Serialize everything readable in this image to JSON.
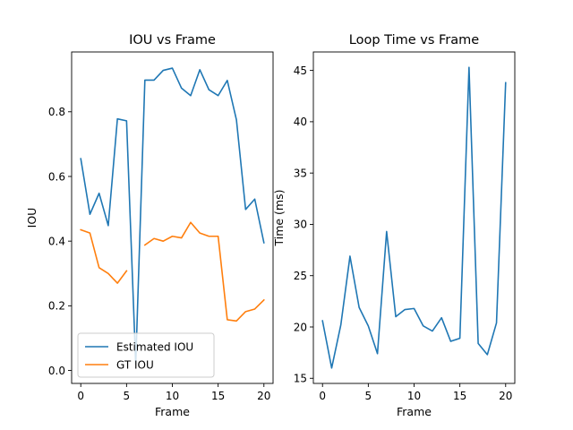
{
  "chart_data": [
    {
      "type": "line",
      "title": "IOU vs Frame",
      "xlabel": "Frame",
      "ylabel": "IOU",
      "xlim": [
        -1,
        21
      ],
      "ylim": [
        -0.04,
        0.985
      ],
      "xticks": [
        0,
        5,
        10,
        15,
        20
      ],
      "yticks": [
        0.0,
        0.2,
        0.4,
        0.6,
        0.8
      ],
      "ytick_labels": [
        "0.0",
        "0.2",
        "0.4",
        "0.6",
        "0.8"
      ],
      "legend": {
        "placement": "lower-left"
      },
      "series": [
        {
          "name": "Estimated IOU",
          "color": "#1f77b4",
          "x": [
            0,
            1,
            2,
            3,
            4,
            5,
            6,
            7,
            8,
            9,
            10,
            11,
            12,
            13,
            14,
            15,
            16,
            17,
            18,
            19,
            20
          ],
          "values": [
            0.655,
            0.483,
            0.548,
            0.448,
            0.778,
            0.772,
            0.02,
            0.898,
            0.898,
            0.928,
            0.935,
            0.873,
            0.85,
            0.93,
            0.868,
            0.85,
            0.897,
            0.775,
            0.498,
            0.53,
            0.395
          ]
        },
        {
          "name": "GT IOU",
          "color": "#ff7f0e",
          "x": [
            0,
            1,
            2,
            3,
            4,
            5,
            6,
            7,
            8,
            9,
            10,
            11,
            12,
            13,
            14,
            15,
            16,
            17,
            18,
            19,
            20
          ],
          "values": [
            0.435,
            0.425,
            0.318,
            0.3,
            0.27,
            0.308,
            null,
            0.388,
            0.408,
            0.4,
            0.415,
            0.41,
            0.458,
            0.425,
            0.415,
            0.415,
            0.157,
            0.153,
            0.182,
            0.19,
            0.218
          ]
        }
      ]
    },
    {
      "type": "line",
      "title": "Loop Time vs Frame",
      "xlabel": "Frame",
      "ylabel": "Time (ms)",
      "xlim": [
        -1,
        21
      ],
      "ylim": [
        14.5,
        46.8
      ],
      "xticks": [
        0,
        5,
        10,
        15,
        20
      ],
      "yticks": [
        15,
        20,
        25,
        30,
        35,
        40,
        45
      ],
      "ytick_labels": [
        "15",
        "20",
        "25",
        "30",
        "35",
        "40",
        "45"
      ],
      "series": [
        {
          "color": "#1f77b4",
          "x": [
            0,
            1,
            2,
            3,
            4,
            5,
            6,
            7,
            8,
            9,
            10,
            11,
            12,
            13,
            14,
            15,
            16,
            17,
            18,
            19,
            20
          ],
          "values": [
            20.6,
            16.0,
            20.2,
            26.9,
            21.9,
            20.1,
            17.4,
            29.3,
            21.0,
            21.7,
            21.8,
            20.1,
            19.6,
            20.9,
            18.6,
            18.9,
            45.3,
            18.4,
            17.3,
            20.4,
            43.8
          ]
        }
      ]
    }
  ]
}
